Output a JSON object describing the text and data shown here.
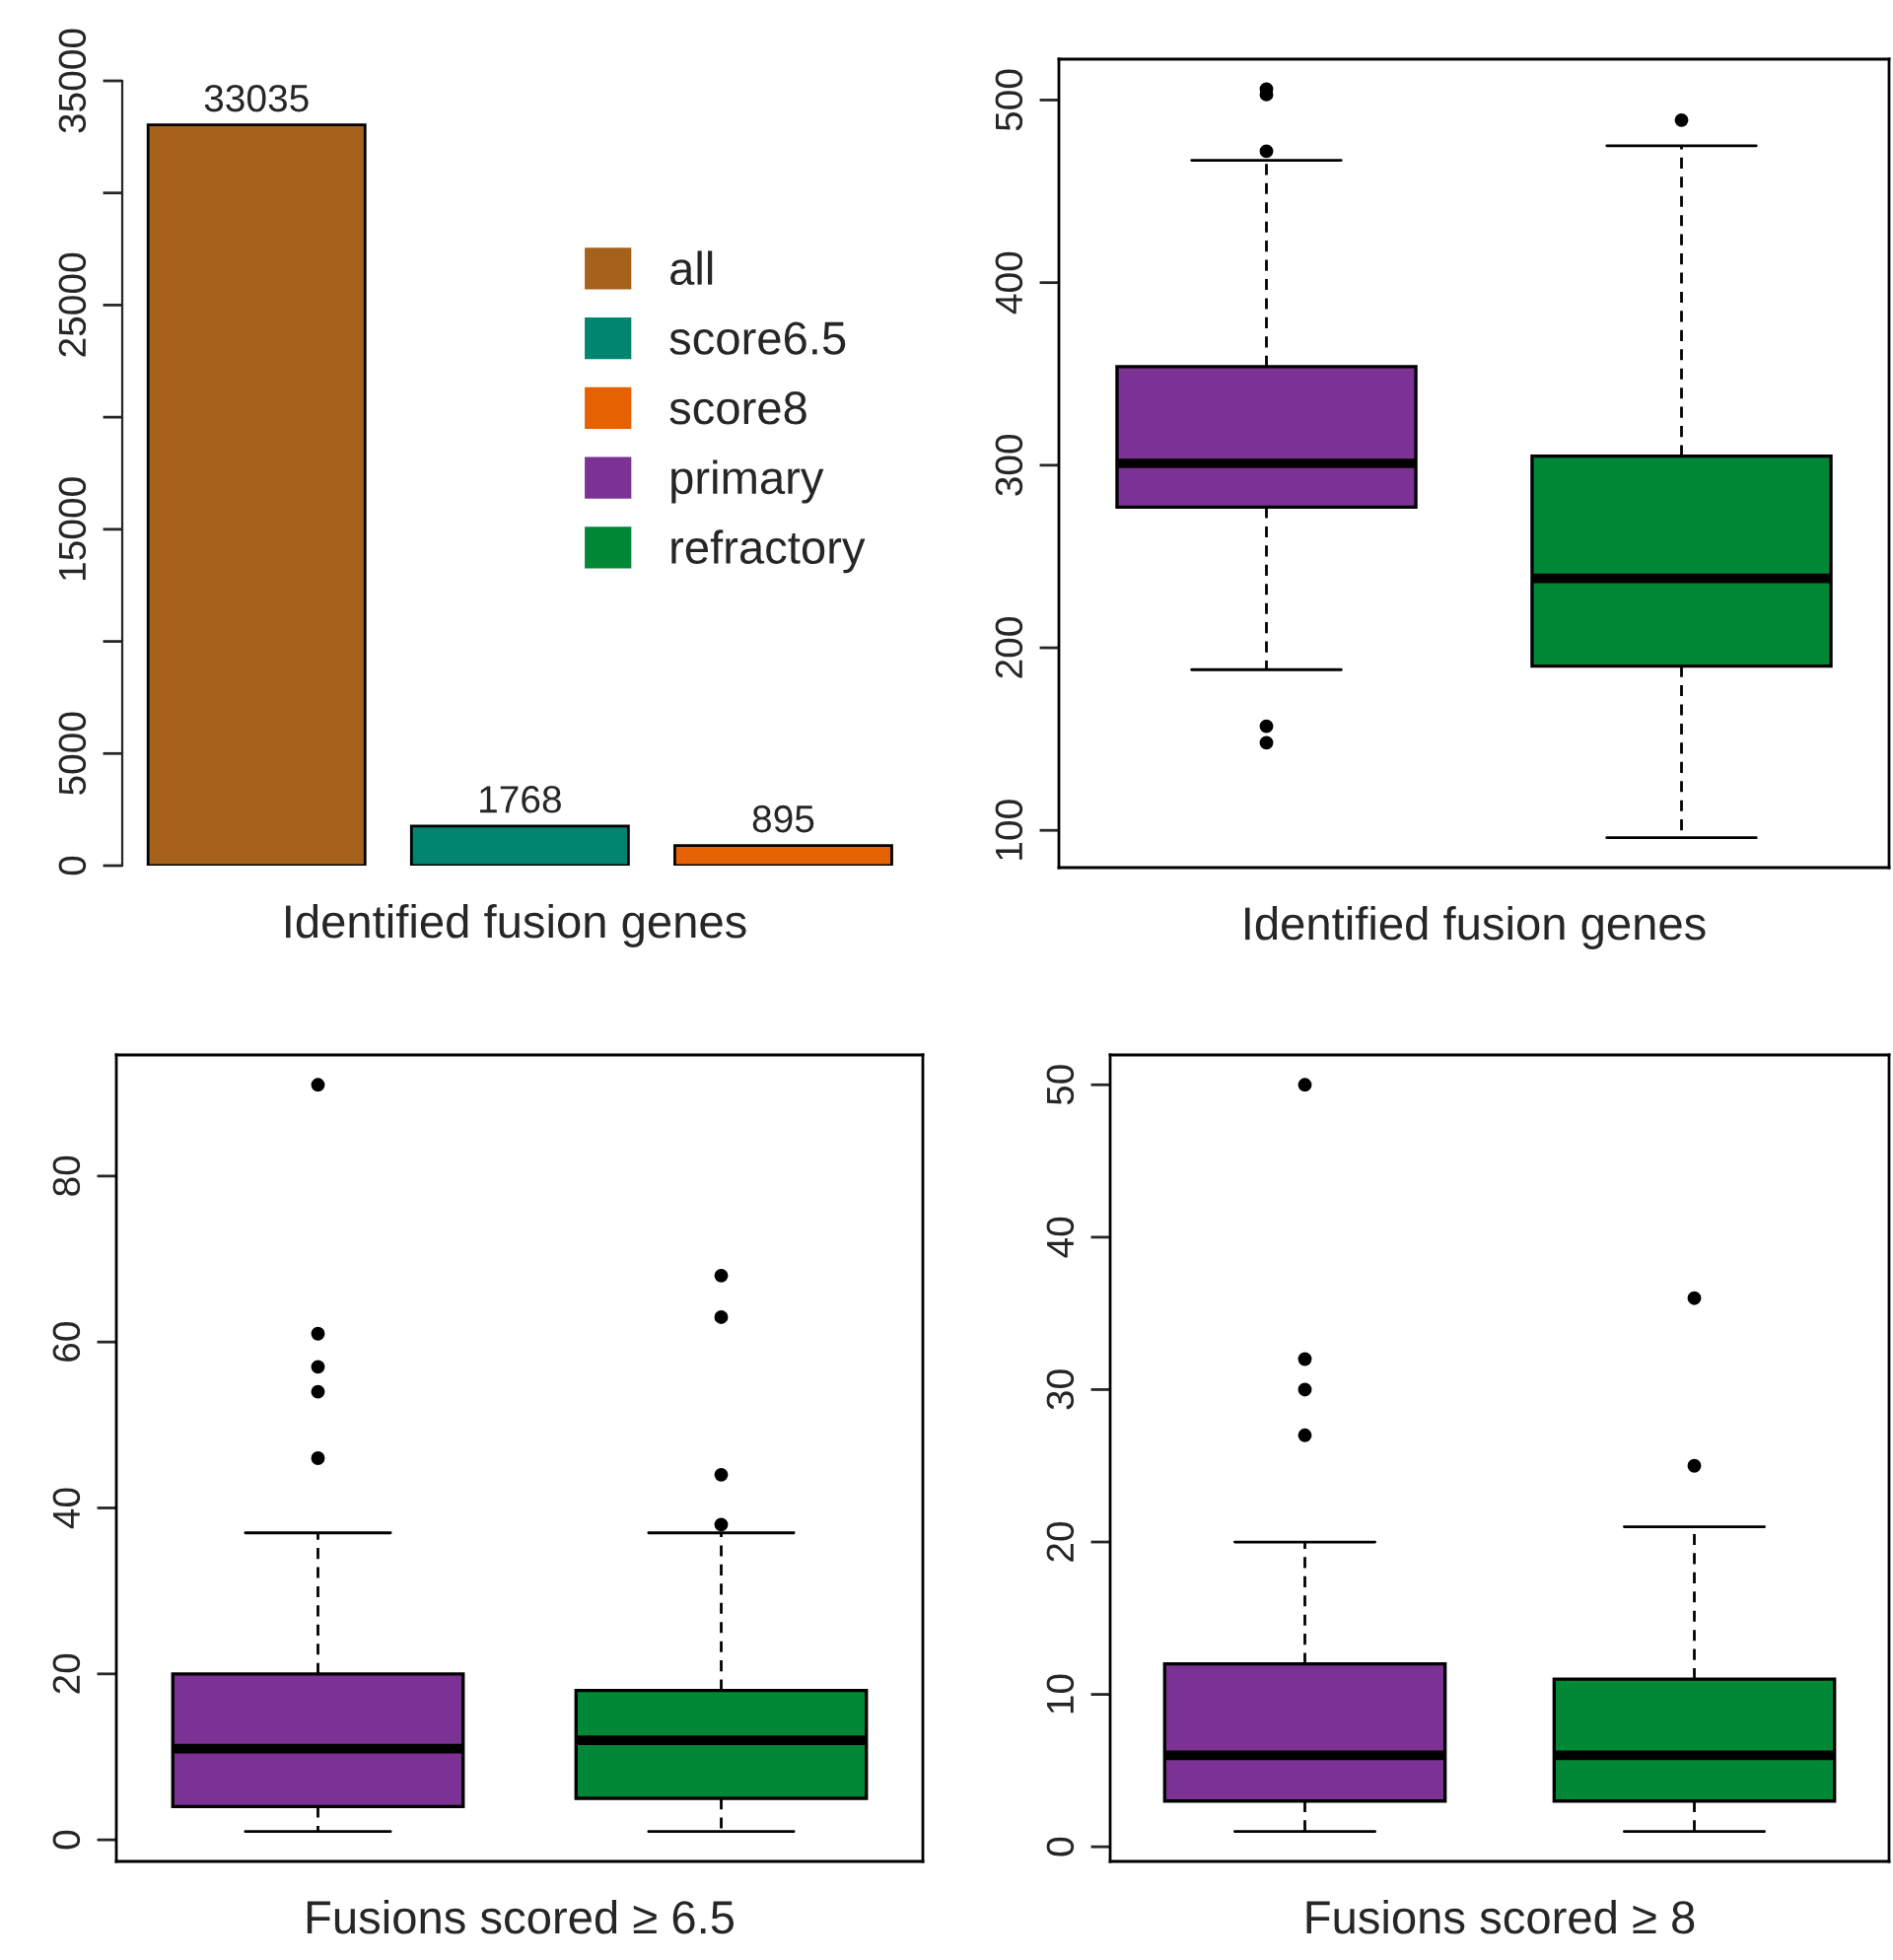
{
  "chart_data": [
    {
      "type": "bar",
      "categories": [
        null,
        null,
        null
      ],
      "xlabel": "Identified fusion genes",
      "stacked": true,
      "series": [
        {
          "name": "all",
          "color": "#a6611a",
          "values": [
            33035,
            null,
            null
          ]
        },
        {
          "name": "score6.5",
          "color": "#018571",
          "values": [
            null,
            1768,
            null
          ]
        },
        {
          "name": "score8",
          "color": "#e66101",
          "values": [
            null,
            null,
            895
          ]
        }
      ],
      "data_labels": true,
      "ylim": [
        0,
        35000
      ],
      "yticks": [
        0,
        5000,
        {
          "value": 10000,
          "label": null
        },
        15000,
        {
          "value": 20000,
          "label": null
        },
        25000,
        {
          "value": 30000,
          "label": null
        },
        35000
      ],
      "legend": "right",
      "tick_labels": "y"
    },
    {
      "type": "box",
      "categories": [
        null,
        null
      ],
      "xlabel": "Identified fusion genes",
      "series": [
        {
          "name": "primary",
          "color": "#7b3294",
          "boxes": [
            {
              "low": 188,
              "q1": 277,
              "median": 301,
              "q3": 354,
              "high": 467,
              "outliers": [
                506,
                503,
                472,
                157,
                148
              ]
            },
            null
          ]
        },
        {
          "name": "refractory",
          "color": "#008837",
          "boxes": [
            null,
            {
              "low": 96,
              "q1": 190,
              "median": 238,
              "q3": 305,
              "high": 475,
              "outliers": [
                489
              ]
            }
          ]
        }
      ],
      "ylim": [
        79.6,
        522.4
      ],
      "yticks": [
        100,
        200,
        300,
        400,
        500
      ],
      "tick_labels": "y",
      "legend": "left"
    },
    {
      "type": "box",
      "categories": [
        null,
        null
      ],
      "xlabel": "Fusions scored ≥ 6.5",
      "series": [
        {
          "color": "#7b3294",
          "boxes": [
            {
              "low": 1,
              "q1": 4,
              "median": 11,
              "q3": 20,
              "high": 37,
              "outliers": [
                91,
                61,
                57,
                54,
                46
              ]
            },
            null
          ]
        },
        {
          "color": "#008837",
          "boxes": [
            null,
            {
              "low": 1,
              "q1": 5,
              "median": 12,
              "q3": 18,
              "high": 37,
              "outliers": [
                68,
                63,
                44,
                38
              ]
            }
          ]
        }
      ],
      "ylim": [
        -2.6,
        94.6
      ],
      "yticks": [
        0,
        20,
        40,
        60,
        80
      ],
      "tick_labels": "y"
    },
    {
      "type": "box",
      "categories": [
        null,
        null
      ],
      "xlabel": "Fusions scored ≥ 8",
      "series": [
        {
          "color": "#7b3294",
          "boxes": [
            {
              "low": 1,
              "q1": 3,
              "median": 6,
              "q3": 12,
              "high": 20,
              "outliers": [
                50,
                32,
                30,
                27
              ]
            },
            null
          ]
        },
        {
          "color": "#008837",
          "boxes": [
            null,
            {
              "low": 1,
              "q1": 3,
              "median": 6,
              "q3": 11,
              "high": 21,
              "outliers": [
                36,
                25
              ]
            }
          ]
        }
      ],
      "ylim": [
        -0.96,
        51.96
      ],
      "yticks": [
        0,
        10,
        20,
        30,
        40,
        50
      ],
      "tick_labels": "y"
    }
  ]
}
